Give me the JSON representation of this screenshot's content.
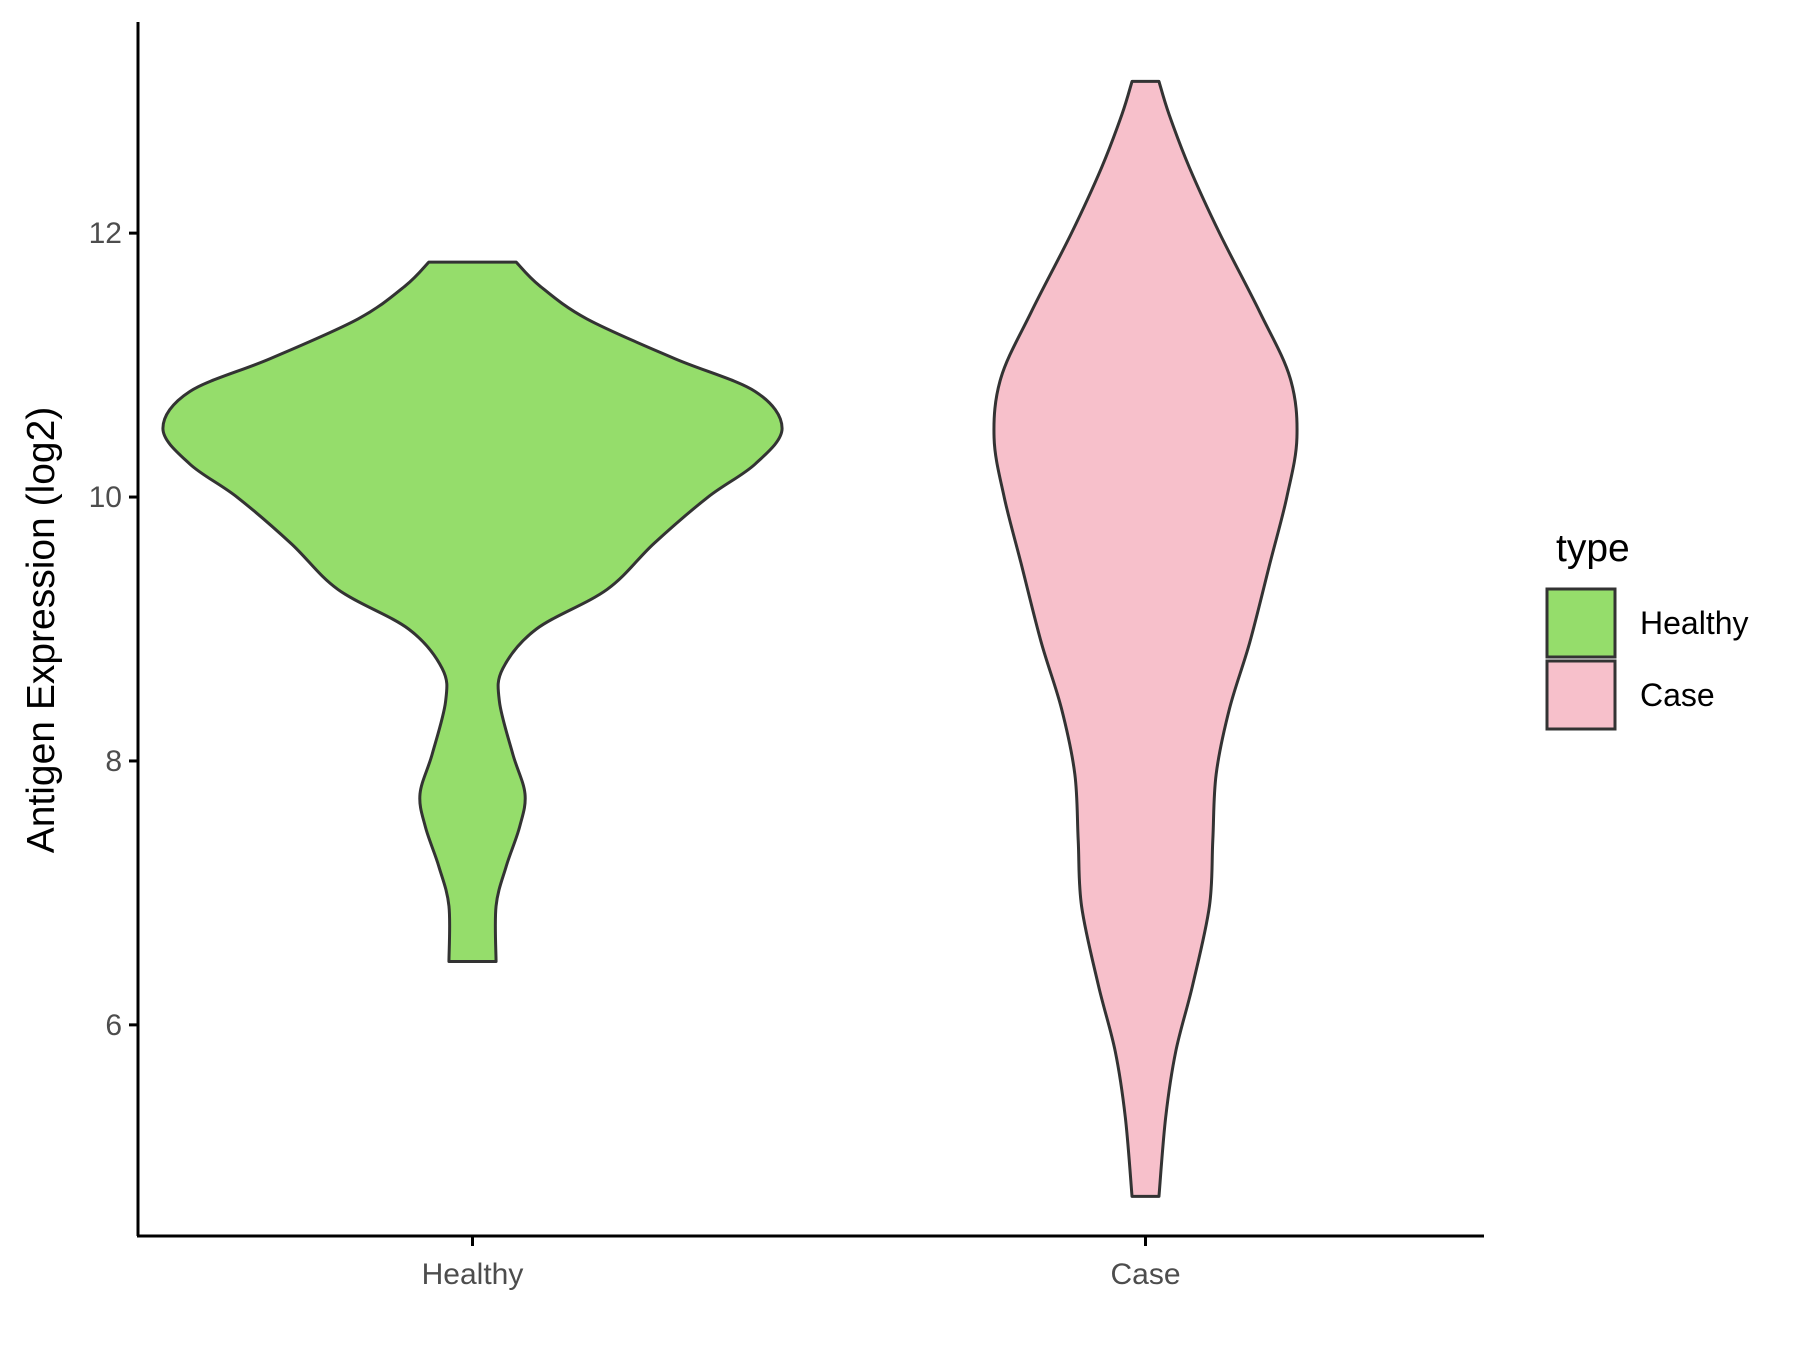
{
  "chart_data": {
    "type": "violin",
    "title": "",
    "xlabel": "",
    "ylabel": "Antigen Expression (log2)",
    "categories": [
      "Healthy",
      "Case"
    ],
    "ylim": [
      4.4,
      13.6
    ],
    "yticks": [
      6,
      8,
      10,
      12
    ],
    "grid": false,
    "legend": {
      "title": "type",
      "position": "right",
      "entries": [
        "Healthy",
        "Case"
      ]
    },
    "series": [
      {
        "name": "Healthy",
        "color": "#95DD6B",
        "min": 6.48,
        "max": 11.78,
        "density_profile": [
          {
            "y": 6.48,
            "half_width": 0.035
          },
          {
            "y": 6.9,
            "half_width": 0.035
          },
          {
            "y": 7.2,
            "half_width": 0.05
          },
          {
            "y": 7.5,
            "half_width": 0.07
          },
          {
            "y": 7.75,
            "half_width": 0.078
          },
          {
            "y": 8.05,
            "half_width": 0.06
          },
          {
            "y": 8.45,
            "half_width": 0.04
          },
          {
            "y": 8.7,
            "half_width": 0.045
          },
          {
            "y": 9.0,
            "half_width": 0.095
          },
          {
            "y": 9.3,
            "half_width": 0.2
          },
          {
            "y": 9.65,
            "half_width": 0.27
          },
          {
            "y": 10.0,
            "half_width": 0.35
          },
          {
            "y": 10.25,
            "half_width": 0.42
          },
          {
            "y": 10.52,
            "half_width": 0.46
          },
          {
            "y": 10.8,
            "half_width": 0.42
          },
          {
            "y": 11.05,
            "half_width": 0.3
          },
          {
            "y": 11.35,
            "half_width": 0.17
          },
          {
            "y": 11.6,
            "half_width": 0.1
          },
          {
            "y": 11.78,
            "half_width": 0.065
          }
        ]
      },
      {
        "name": "Case",
        "color": "#F7C0CB",
        "min": 4.7,
        "max": 13.15,
        "density_profile": [
          {
            "y": 4.7,
            "half_width": 0.02
          },
          {
            "y": 5.3,
            "half_width": 0.03
          },
          {
            "y": 5.8,
            "half_width": 0.045
          },
          {
            "y": 6.3,
            "half_width": 0.07
          },
          {
            "y": 6.9,
            "half_width": 0.095
          },
          {
            "y": 7.4,
            "half_width": 0.1
          },
          {
            "y": 7.9,
            "half_width": 0.105
          },
          {
            "y": 8.4,
            "half_width": 0.125
          },
          {
            "y": 8.9,
            "half_width": 0.155
          },
          {
            "y": 9.5,
            "half_width": 0.185
          },
          {
            "y": 10.0,
            "half_width": 0.21
          },
          {
            "y": 10.45,
            "half_width": 0.225
          },
          {
            "y": 10.9,
            "half_width": 0.215
          },
          {
            "y": 11.4,
            "half_width": 0.17
          },
          {
            "y": 12.0,
            "half_width": 0.11
          },
          {
            "y": 12.5,
            "half_width": 0.065
          },
          {
            "y": 12.9,
            "half_width": 0.035
          },
          {
            "y": 13.15,
            "half_width": 0.02
          }
        ]
      }
    ]
  }
}
